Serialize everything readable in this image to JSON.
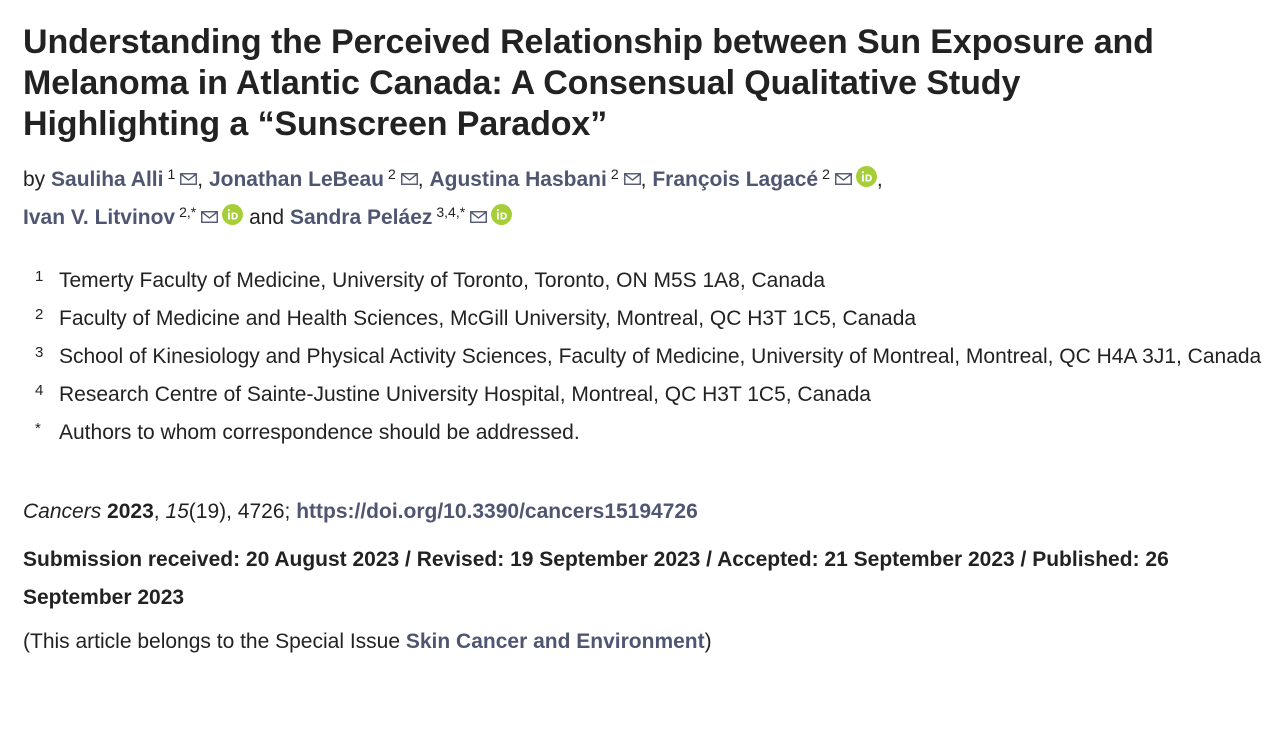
{
  "article": {
    "title_lines": [
      "Understanding the Perceived Relationship between Sun Exposure and",
      "Melanoma in Atlantic Canada: A Consensual Qualitative Study",
      "Highlighting a “Sunscreen Paradox”"
    ],
    "by_label": "by",
    "and_label": "and",
    "authors": [
      {
        "name": "Sauliha Alli",
        "affil": "1"
      },
      {
        "name": "Jonathan LeBeau",
        "affil": "2"
      },
      {
        "name": "Agustina Hasbani",
        "affil": "2"
      },
      {
        "name": "François Lagacé",
        "affil": "2"
      },
      {
        "name": "Ivan V. Litvinov",
        "affil": "2,*"
      },
      {
        "name": "Sandra Peláez",
        "affil": "3,4,*"
      }
    ],
    "separator": ",",
    "affiliations": [
      {
        "num": "1",
        "text": "Temerty Faculty of Medicine, University of Toronto, Toronto, ON M5S 1A8, Canada"
      },
      {
        "num": "2",
        "text": "Faculty of Medicine and Health Sciences, McGill University, Montreal, QC H3T 1C5, Canada"
      },
      {
        "num": "3",
        "text": "School of Kinesiology and Physical Activity Sciences, Faculty of Medicine, University of Montreal, Montreal, QC H4A 3J1, Canada"
      },
      {
        "num": "4",
        "text": "Research Centre of Sainte-Justine University Hospital, Montreal, QC H3T 1C5, Canada"
      },
      {
        "num": "*",
        "text": "Authors to whom correspondence should be addressed."
      }
    ],
    "citation": {
      "journal": "Cancers",
      "year": "2023",
      "volume": "15",
      "issue": "(19), 4726; ",
      "doi": "https://doi.org/10.3390/cancers15194726"
    },
    "dates": "Submission received: 20 August 2023 / Revised: 19 September 2023 / Accepted: 21 September 2023 / Published: 26 September 2023",
    "note": {
      "prefix": "(This article belongs to the Special Issue ",
      "link": "Skin Cancer and Environment",
      "suffix": ")"
    }
  },
  "colors": {
    "author_link": "#4f5671",
    "orcid_green": "#a6ce39",
    "text": "#222222"
  },
  "icons": {
    "mail": "mail-icon",
    "orcid": "orcid-icon"
  }
}
